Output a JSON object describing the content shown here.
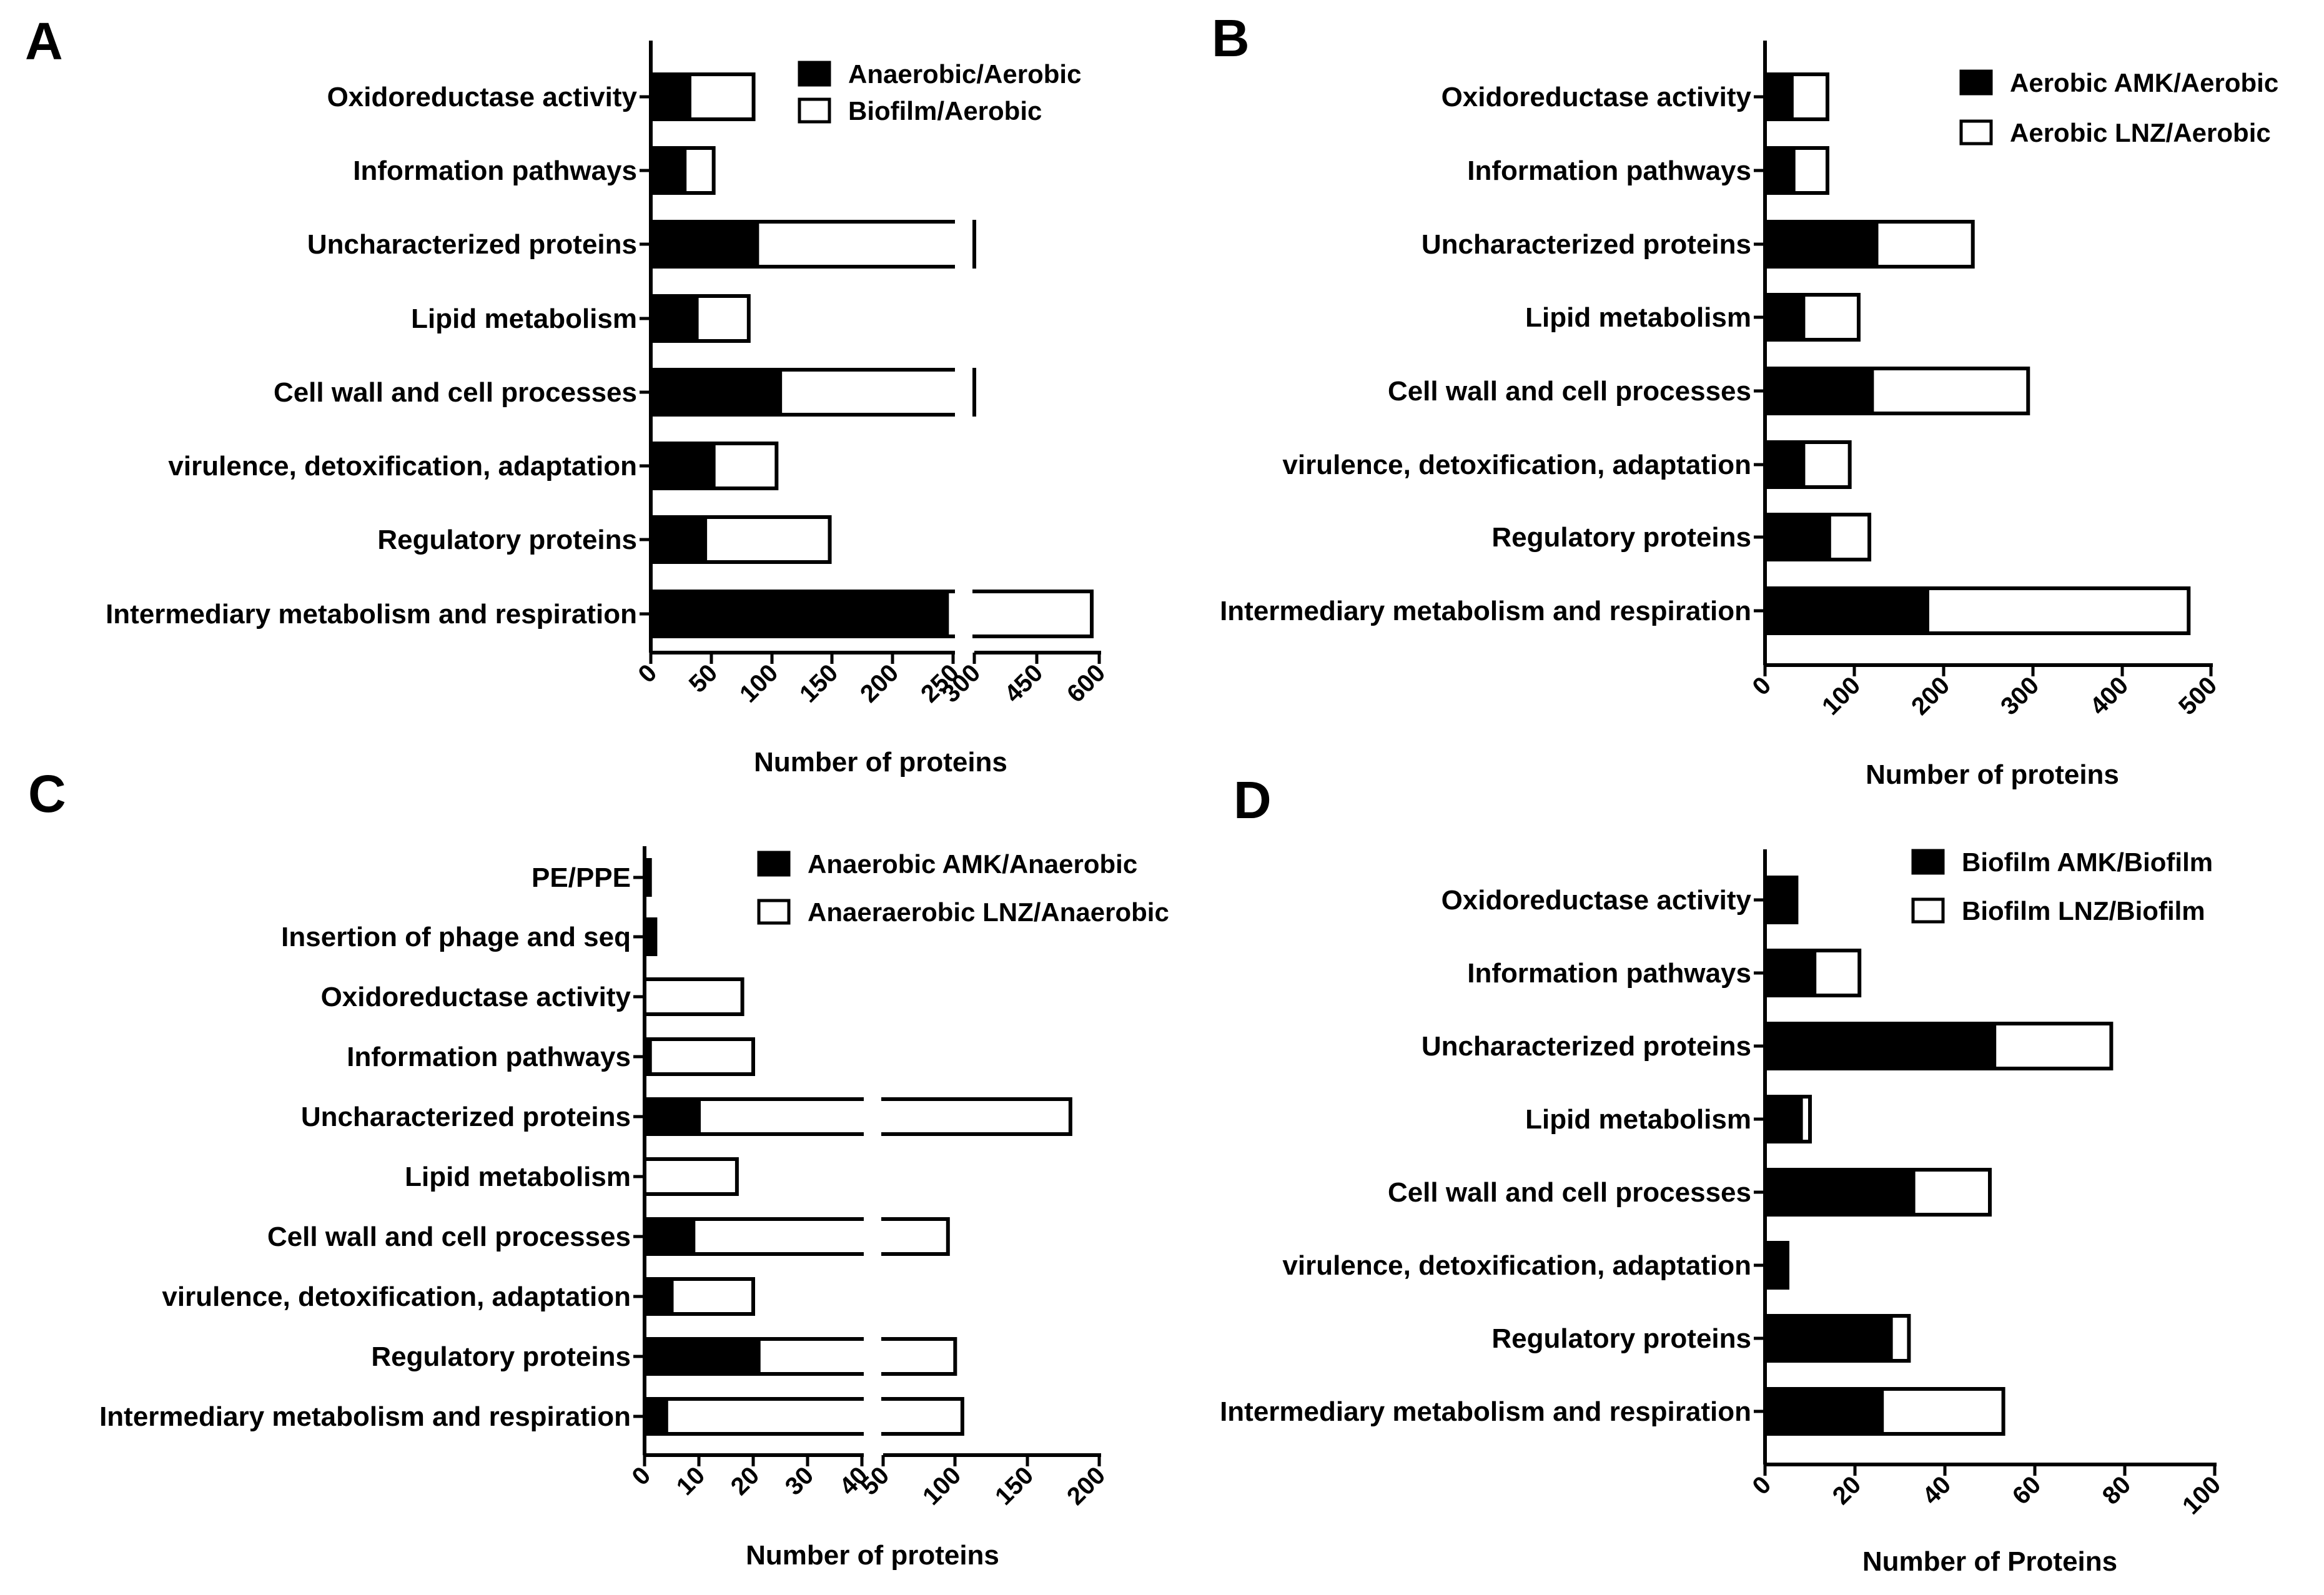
{
  "colors": {
    "primary_fill": "#000000",
    "secondary_fill": "#ffffff",
    "stroke": "#000000"
  },
  "chart_data": [
    {
      "type": "bar",
      "orientation": "horizontal",
      "stacked": true,
      "panel": "A",
      "categories": [
        "Oxidoreductase activity",
        "Information pathways",
        "Uncharacterized proteins",
        "Lipid metabolism",
        "Cell wall and cell processes",
        "virulence, detoxification, adaptation",
        "Regulatory proteins",
        "Intermediary metabolism and respiration"
      ],
      "series": [
        {
          "name": "Anaerobic/Aerobic",
          "values": [
            32,
            28,
            88,
            38,
            107,
            52,
            45,
            245
          ]
        },
        {
          "name": "Biofilm/Aerobic",
          "values": [
            53,
            24,
            170,
            43,
            168,
            52,
            103,
            337
          ]
        }
      ],
      "xlabel": "Number of proteins",
      "ylabel": "",
      "axis_break": [
        250,
        300
      ],
      "xticks": [
        "0",
        "50",
        "100",
        "150",
        "200",
        "250",
        "300",
        "450",
        "600"
      ],
      "xlim": [
        0,
        600
      ],
      "legend": "top-right"
    },
    {
      "type": "bar",
      "orientation": "horizontal",
      "stacked": true,
      "panel": "B",
      "categories": [
        "Oxidoreductase activity",
        "Information pathways",
        "Uncharacterized proteins",
        "Lipid metabolism",
        "Cell wall and cell processes",
        "virulence, detoxification, adaptation",
        "Regulatory proteins",
        "Intermediary metabolism and respiration"
      ],
      "series": [
        {
          "name": "Aerobic AMK/Aerobic",
          "values": [
            30,
            32,
            125,
            43,
            120,
            43,
            72,
            182
          ]
        },
        {
          "name": "Aerobic LNZ/Aerobic",
          "values": [
            40,
            38,
            108,
            62,
            175,
            52,
            45,
            293
          ]
        }
      ],
      "xlabel": "Number of proteins",
      "ylabel": "",
      "xticks": [
        "0",
        "100",
        "200",
        "300",
        "400",
        "500"
      ],
      "xlim": [
        0,
        500
      ],
      "legend": "top-right"
    },
    {
      "type": "bar",
      "orientation": "horizontal",
      "stacked": true,
      "panel": "C",
      "categories": [
        "PE/PPE",
        "Insertion of phage and seq",
        "Oxidoreductase activity",
        "Information pathways",
        "Uncharacterized proteins",
        "Lipid metabolism",
        "Cell wall and cell processes",
        "virulence, detoxification, adaptation",
        "Regulatory proteins",
        "Intermediary metabolism and respiration"
      ],
      "series": [
        {
          "name": "Anaerobic AMK/Anaerobic",
          "values": [
            1,
            2,
            0,
            1,
            10,
            0,
            9,
            5,
            21,
            4
          ]
        },
        {
          "name": "Anaeraerobic LNZ/Anaerobic",
          "values": [
            0,
            0,
            18,
            19,
            170,
            17,
            86,
            15,
            79,
            101
          ]
        }
      ],
      "xlabel": "Number of proteins",
      "ylabel": "",
      "axis_break": [
        40,
        50
      ],
      "xticks": [
        "0",
        "10",
        "20",
        "30",
        "40",
        "50",
        "100",
        "150",
        "200"
      ],
      "xlim": [
        0,
        200
      ],
      "legend": "top-right"
    },
    {
      "type": "bar",
      "orientation": "horizontal",
      "stacked": true,
      "panel": "D",
      "categories": [
        "Oxidoreductase activity",
        "Information pathways",
        "Uncharacterized proteins",
        "Lipid metabolism",
        "Cell wall and cell processes",
        "virulence, detoxification, adaptation",
        "Regulatory proteins",
        "Intermediary metabolism and respiration"
      ],
      "series": [
        {
          "name": "Biofilm AMK/Biofilm",
          "values": [
            7,
            11,
            51,
            8,
            33,
            5,
            28,
            26
          ]
        },
        {
          "name": "Biofilm LNZ/Biofilm",
          "values": [
            0,
            10,
            26,
            2,
            17,
            0,
            4,
            27
          ]
        }
      ],
      "xlabel": "Number of Proteins",
      "ylabel": "",
      "xticks": [
        "0",
        "20",
        "40",
        "60",
        "80",
        "100"
      ],
      "xlim": [
        0,
        100
      ],
      "legend": "top-right"
    }
  ]
}
